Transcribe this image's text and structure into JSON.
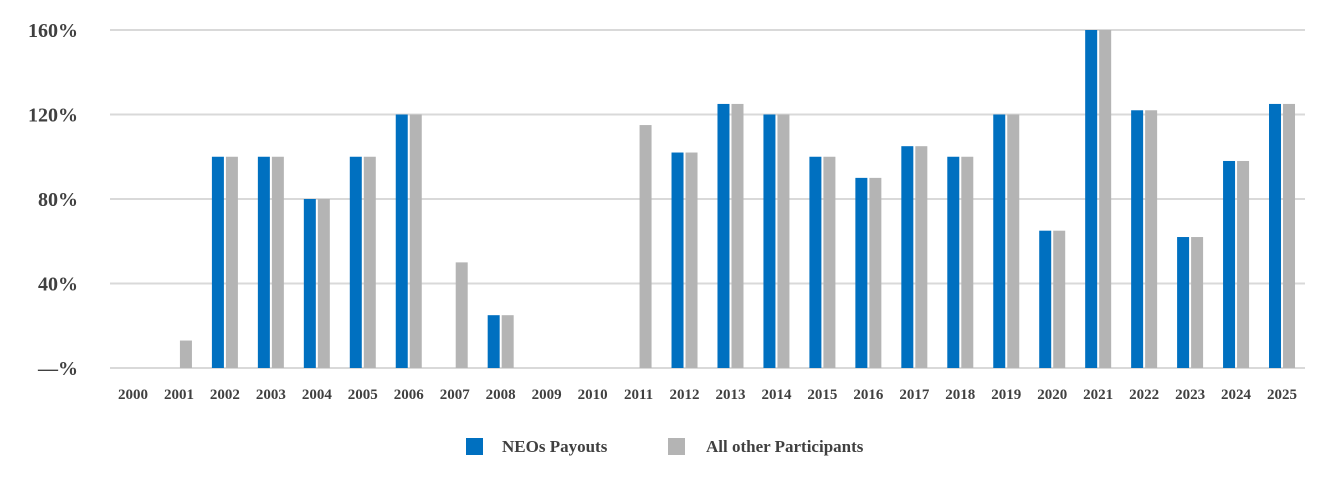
{
  "chart_data": {
    "type": "bar",
    "categories": [
      "2000",
      "2001",
      "2002",
      "2003",
      "2004",
      "2005",
      "2006",
      "2007",
      "2008",
      "2009",
      "2010",
      "2011",
      "2012",
      "2013",
      "2014",
      "2015",
      "2016",
      "2017",
      "2018",
      "2019",
      "2020",
      "2021",
      "2022",
      "2023",
      "2024",
      "2025"
    ],
    "series": [
      {
        "name": "NEOs Payouts",
        "color": "#0070C0",
        "values": [
          0,
          0,
          100,
          100,
          80,
          100,
          120,
          0,
          25,
          0,
          0,
          0,
          102,
          125,
          120,
          100,
          90,
          105,
          100,
          120,
          65,
          160,
          122,
          62,
          98,
          125
        ]
      },
      {
        "name": "All other Participants",
        "color": "#B4B4B4",
        "values": [
          0,
          13,
          100,
          100,
          80,
          100,
          120,
          50,
          25,
          0,
          0,
          115,
          102,
          125,
          120,
          100,
          90,
          105,
          100,
          120,
          65,
          160,
          122,
          62,
          98,
          125
        ]
      }
    ],
    "y_ticks": [
      0,
      40,
      80,
      120,
      160
    ],
    "y_tick_labels": [
      "—%",
      "40%",
      "80%",
      "120%",
      "160%"
    ],
    "ylim": [
      0,
      160
    ],
    "grid": true,
    "legend_position": "bottom",
    "gridline_color": "#D9D9D9"
  }
}
